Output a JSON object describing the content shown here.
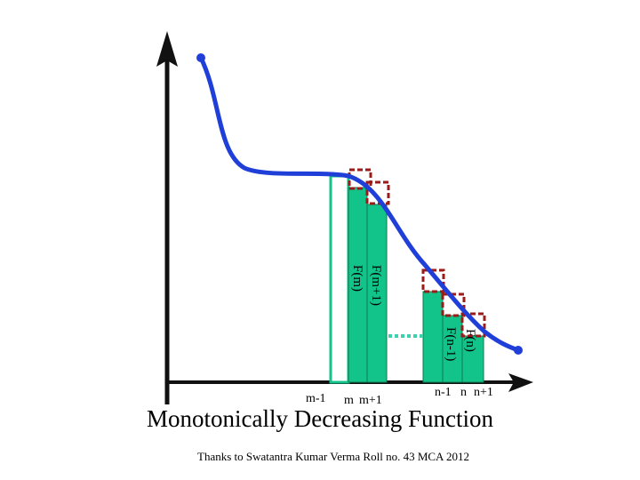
{
  "diagram": {
    "title": "Monotonically Decreasing Function",
    "credit": "Thanks to Swatantra Kumar Verma  Roll no. 43  MCA  2012",
    "x_ticks": {
      "m_minus_1": "m-1",
      "m": "m",
      "m_plus_1": "m+1",
      "n_minus_1": "n-1",
      "n": "n",
      "n_plus_1": "n+1"
    },
    "bar_labels": {
      "f_m": "F(m)",
      "f_m_plus_1": "F(m+1)",
      "f_n_minus_1": "F(n-1)",
      "f_n": "F(n)"
    },
    "colors": {
      "curve": "#1f3fd8",
      "bar_fill": "#12c48a",
      "bar_stroke": "#0a7a50",
      "dashed_box": "#9b1a1a",
      "dotted_connector": "#3fd0b0",
      "axes": "#111111"
    }
  }
}
